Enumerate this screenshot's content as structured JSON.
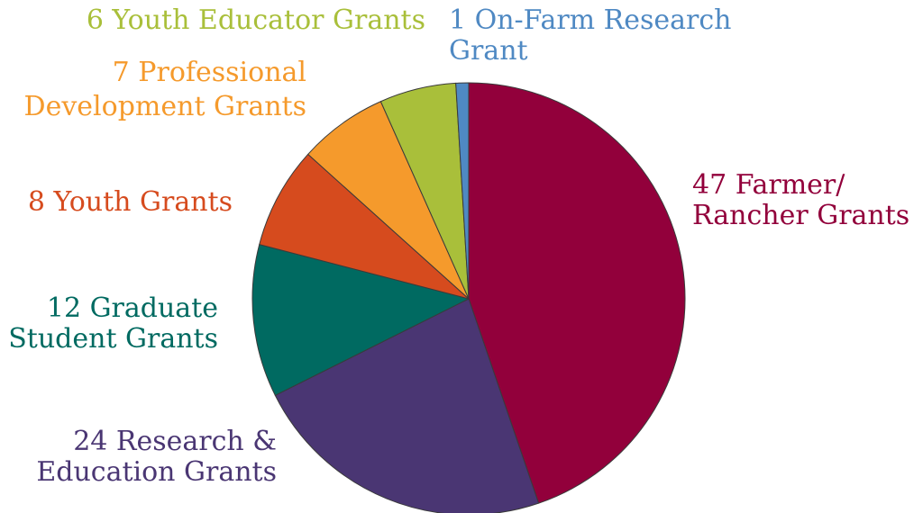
{
  "chart_data": {
    "type": "pie",
    "slices": [
      {
        "value": 47,
        "label": [
          "47 Farmer/",
          "Rancher Grants"
        ],
        "color": "#92003b"
      },
      {
        "value": 24,
        "label": [
          "24 Research &",
          "Education Grants"
        ],
        "color": "#4a3673"
      },
      {
        "value": 12,
        "label": [
          "12 Graduate",
          "Student Grants"
        ],
        "color": "#006a61"
      },
      {
        "value": 8,
        "label": [
          "8 Youth Grants"
        ],
        "color": "#d64b1e"
      },
      {
        "value": 7,
        "label": [
          "7 Professional",
          "Development Grants"
        ],
        "color": "#f59a2c"
      },
      {
        "value": 6,
        "label": [
          "6 Youth Educator Grants"
        ],
        "color": "#a9bf3a"
      },
      {
        "value": 1,
        "label": [
          "1 On-Farm Research",
          "Grant"
        ],
        "color": "#4f89c3"
      }
    ]
  }
}
